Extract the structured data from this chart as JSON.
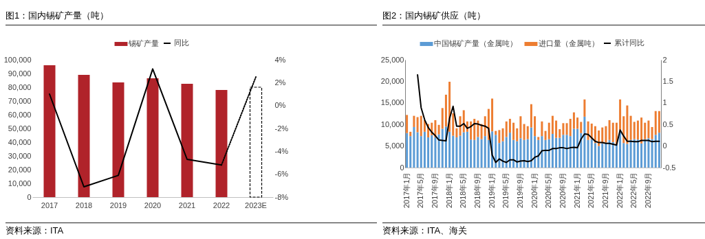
{
  "chart_data": [
    {
      "type": "bar",
      "title": "图1：国内锡矿产量（吨）",
      "annotations": [
        "资料来源：ITA"
      ],
      "legend": "top",
      "categories": [
        "2017",
        "2018",
        "2019",
        "2020",
        "2021",
        "2022",
        "2023E"
      ],
      "series": [
        {
          "name": "锡矿产量",
          "color": "#b0232a",
          "values": [
            96000,
            89000,
            83500,
            86500,
            82500,
            78000,
            null
          ]
        },
        {
          "color": "#000000",
          "line_style": "dashed",
          "values": [
            null,
            null,
            null,
            null,
            null,
            null,
            80000
          ]
        },
        {
          "name": "同比",
          "type": "line",
          "axis": "y2",
          "color": "#000000",
          "line_style": "solid",
          "values": [
            1.0,
            -7.1,
            -6.1,
            3.2,
            -4.7,
            -5.2,
            null
          ]
        },
        {
          "type": "line",
          "axis": "y2",
          "color": "#000000",
          "line_style": "dotted",
          "values": [
            null,
            null,
            null,
            null,
            null,
            -5.2,
            2.5
          ]
        }
      ],
      "ylim": [
        0,
        100000
      ],
      "yticks": [
        0,
        {
          "value": 10000,
          "label": "10,000"
        },
        {
          "value": 20000,
          "label": "20,000"
        },
        {
          "value": 30000,
          "label": "30,000"
        },
        {
          "value": 40000,
          "label": "40,000"
        },
        {
          "value": 50000,
          "label": "50,000"
        },
        {
          "value": 60000,
          "label": "60,000"
        },
        {
          "value": 70000,
          "label": "70,000"
        },
        {
          "value": 80000,
          "label": "80,000"
        },
        {
          "value": 90000,
          "label": "90,000"
        },
        {
          "value": 100000,
          "label": "100,000"
        }
      ],
      "y2lim": [
        -8,
        4
      ],
      "y2ticks": [
        {
          "value": -8,
          "label": "-8%"
        },
        {
          "value": -6,
          "label": "-6%"
        },
        {
          "value": -4,
          "label": "-4%"
        },
        {
          "value": -2,
          "label": "-2%"
        },
        {
          "value": 0,
          "label": "0%"
        },
        {
          "value": 2,
          "label": "2%"
        },
        {
          "value": 4,
          "label": "4%"
        }
      ]
    },
    {
      "type": "bar",
      "stacked": true,
      "title": "图2：国内锡矿供应（吨）",
      "annotations": [
        "资料来源：ITA、海关"
      ],
      "legend": "top",
      "categories": [
        "2017年1月",
        null,
        null,
        null,
        "2017年5月",
        null,
        null,
        null,
        "2017年9月",
        null,
        null,
        null,
        "2018年1月",
        null,
        null,
        null,
        "2018年5月",
        null,
        null,
        null,
        "2018年9月",
        null,
        null,
        null,
        "2019年1月",
        null,
        null,
        null,
        "2019年5月",
        null,
        null,
        null,
        "2019年9月",
        null,
        null,
        null,
        "2020年1月",
        null,
        null,
        null,
        "2020年5月",
        null,
        null,
        null,
        "2020年9月",
        null,
        null,
        null,
        "2021年1月",
        null,
        null,
        null,
        "2021年5月",
        null,
        null,
        null,
        "2021年9月",
        null,
        null,
        null,
        "2022年1月",
        null,
        null,
        null,
        "2022年5月",
        null,
        null,
        null,
        "2022年9月",
        null,
        null,
        null
      ],
      "series": [
        {
          "name": "中国锡矿产量（金属吨）",
          "color": "#5b9bd5",
          "values": [
            8000,
            7300,
            9400,
            8200,
            7300,
            8300,
            7000,
            7500,
            7000,
            7700,
            9000,
            9500,
            8300,
            7400,
            7000,
            7400,
            8200,
            8300,
            6500,
            6400,
            7100,
            6600,
            7300,
            6400,
            8400,
            7600,
            5700,
            6100,
            7100,
            8100,
            6400,
            6100,
            6800,
            6400,
            6600,
            9300,
            7300,
            6400,
            7300,
            6400,
            6600,
            7800,
            6900,
            6900,
            7600,
            7600,
            7300,
            9000,
            9000,
            8000,
            11800,
            6400,
            6600,
            5700,
            5000,
            5600,
            5800,
            6400,
            5900,
            5400,
            8700,
            5700,
            5500,
            6400,
            6600,
            6500,
            5600,
            6600,
            6800,
            6600,
            7600,
            8100
          ]
        },
        {
          "name": "进口量（金属吨）",
          "color": "#ed7d31",
          "values": [
            4200,
            1000,
            2600,
            3500,
            4700,
            2700,
            3100,
            2900,
            4000,
            2200,
            4800,
            7400,
            11600,
            5200,
            2100,
            4500,
            5100,
            2400,
            4200,
            4900,
            3800,
            3500,
            4600,
            7200,
            7600,
            900,
            3000,
            3000,
            3600,
            3200,
            4000,
            3000,
            5100,
            3700,
            3000,
            5400,
            4600,
            700,
            3400,
            2100,
            3800,
            4200,
            4000,
            2000,
            2700,
            2700,
            4000,
            3800,
            2600,
            2600,
            4000,
            4300,
            3600,
            3900,
            3600,
            3700,
            3800,
            4600,
            4500,
            5000,
            7100,
            6200,
            8900,
            5600,
            4000,
            4400,
            6000,
            3800,
            4100,
            2800,
            5500,
            5000
          ]
        },
        {
          "name": "累计同比",
          "type": "line",
          "axis": "y2",
          "color": "#000000",
          "line_style": "solid",
          "values": [
            null,
            null,
            null,
            1.65,
            0.89,
            0.61,
            0.43,
            0.32,
            0.24,
            0.14,
            0.13,
            0.12,
            0.64,
            0.92,
            0.46,
            0.46,
            0.52,
            0.41,
            0.45,
            0.52,
            0.51,
            0.48,
            0.46,
            0.41,
            -0.21,
            -0.38,
            -0.3,
            -0.35,
            -0.38,
            -0.32,
            -0.32,
            -0.37,
            -0.35,
            -0.34,
            -0.36,
            -0.34,
            -0.26,
            -0.23,
            -0.11,
            -0.1,
            -0.1,
            -0.06,
            -0.06,
            -0.04,
            -0.04,
            -0.06,
            -0.04,
            -0.03,
            -0.04,
            0.16,
            0.28,
            0.27,
            0.19,
            0.11,
            0.08,
            0.08,
            0.06,
            0.06,
            0.04,
            0.02,
            0.37,
            0.23,
            0.11,
            0.11,
            0.1,
            0.1,
            0.13,
            0.13,
            0.13,
            0.1,
            0.11,
            0.11
          ]
        }
      ],
      "ylim": [
        0,
        25000
      ],
      "yticks": [
        0,
        {
          "value": 5000,
          "label": "5,000"
        },
        {
          "value": 10000,
          "label": "10,000"
        },
        {
          "value": 15000,
          "label": "15,000"
        },
        {
          "value": 20000,
          "label": "20,000"
        },
        {
          "value": 25000,
          "label": "25,000"
        }
      ],
      "y2lim": [
        -0.5,
        2
      ],
      "y2ticks": [
        -0.5,
        0,
        0.5,
        1,
        1.5,
        2
      ]
    }
  ]
}
